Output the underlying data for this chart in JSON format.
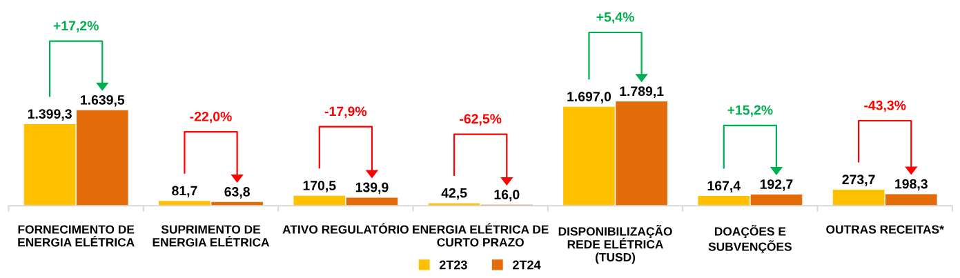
{
  "chart_data": {
    "type": "bar",
    "categories": [
      "FORNECIMENTO DE\nENERGIA ELÉTRICA",
      "SUPRIMENTO DE\nENERGIA ELÉTRICA",
      "ATIVO REGULATÓRIO",
      "ENERGIA ELÉTRICA DE\nCURTO PRAZO",
      "DISPONIBILIZAÇÃO\nREDE ELÉTRICA\n(TUSD)",
      "DOAÇÕES E\nSUBVENÇÕES",
      "OUTRAS RECEITAS*"
    ],
    "series": [
      {
        "name": "2T23",
        "color": "#ffc000",
        "values": [
          1399.3,
          81.7,
          170.5,
          42.5,
          1697.0,
          167.4,
          273.7
        ],
        "value_labels": [
          "1.399,3",
          "81,7",
          "170,5",
          "42,5",
          "1.697,0",
          "167,4",
          "273,7"
        ]
      },
      {
        "name": "2T24",
        "color": "#e36c09",
        "values": [
          1639.5,
          63.8,
          139.9,
          16.0,
          1789.1,
          192.7,
          198.3
        ],
        "value_labels": [
          "1.639,5",
          "63,8",
          "139,9",
          "16,0",
          "1.789,1",
          "192,7",
          "198,3"
        ]
      }
    ],
    "annotations": [
      "+17,2%",
      "-22,0%",
      "-17,9%",
      "-62,5%",
      "+5,4%",
      "+15,2%",
      "-43,3%"
    ],
    "legend": "bottom",
    "grid": false
  }
}
